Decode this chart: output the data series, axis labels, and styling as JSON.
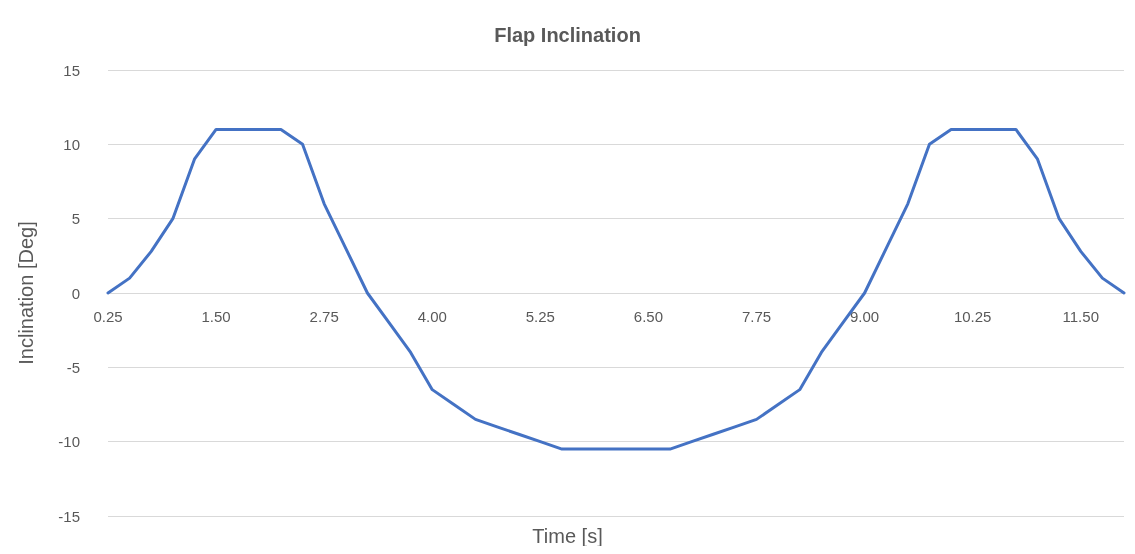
{
  "chart_data": {
    "type": "line",
    "title": "Flap Inclination",
    "xlabel": "Time [s]",
    "ylabel": "Inclination [Deg]",
    "categories": [
      "0.25",
      null,
      null,
      null,
      null,
      "1.50",
      null,
      null,
      null,
      null,
      "2.75",
      null,
      null,
      null,
      null,
      "4.00",
      null,
      null,
      null,
      null,
      "5.25",
      null,
      null,
      null,
      null,
      "6.50",
      null,
      null,
      null,
      null,
      "7.75",
      null,
      null,
      null,
      null,
      "9.00",
      null,
      null,
      null,
      null,
      "10.25",
      null,
      null,
      null,
      null,
      "11.50",
      null,
      null
    ],
    "series": [
      {
        "color": "#4472c4",
        "values": [
          0,
          1,
          2.8,
          5,
          9,
          11,
          11,
          11,
          11,
          10,
          6,
          3,
          0,
          -2,
          -4,
          -6.5,
          -7.5,
          -8.5,
          -9,
          -9.5,
          -10,
          -10.5,
          -10.5,
          -10.5,
          -10.5,
          -10.5,
          -10.5,
          -10,
          -9.5,
          -9,
          -8.5,
          -7.5,
          -6.5,
          -4,
          -2,
          0,
          3,
          6,
          10,
          11,
          11,
          11,
          11,
          9,
          5,
          2.8,
          1,
          0
        ]
      }
    ],
    "ylim": [
      -15,
      15
    ],
    "yticks": [
      -15,
      -10,
      -5,
      0,
      5,
      10,
      15
    ],
    "grid": "y",
    "marker": "none",
    "line_style": "solid"
  }
}
